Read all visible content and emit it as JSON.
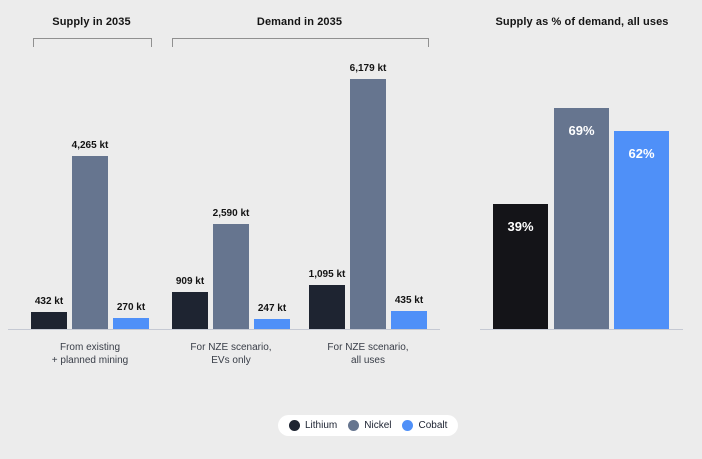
{
  "colors": {
    "background": "#ececec",
    "lithium": "#1e2431",
    "lithium_solo": "#141418",
    "nickel": "#66758f",
    "cobalt": "#4f90f8",
    "axis": "#c5c9d3",
    "bracket": "#909090",
    "value_label_text": "#141414",
    "pct_label_text": "#ffffff",
    "legend_bg": "#ffffff"
  },
  "sections": {
    "supply_header": "Supply in 2035",
    "demand_header": "Demand in 2035",
    "ratio_header": "Supply as % of demand, all uses"
  },
  "legend": {
    "items": [
      {
        "label": "Lithium",
        "color": "#1e2431"
      },
      {
        "label": "Nickel",
        "color": "#66758f"
      },
      {
        "label": "Cobalt",
        "color": "#4f90f8"
      }
    ]
  },
  "chart_data": [
    {
      "type": "bar",
      "title": "Supply and demand in 2035",
      "unit": "kt",
      "ylim": [
        0,
        6179
      ],
      "grid": false,
      "series": [
        "Lithium",
        "Nickel",
        "Cobalt"
      ],
      "categories": [
        [
          "From existing",
          "+ planned mining"
        ],
        [
          "For NZE scenario,",
          "EVs only"
        ],
        [
          "For NZE scenario,",
          "all uses"
        ]
      ],
      "category_sections": [
        "Supply in 2035",
        "Demand in 2035",
        "Demand in 2035"
      ],
      "values": [
        [
          432,
          4265,
          270
        ],
        [
          909,
          2590,
          247
        ],
        [
          1095,
          6179,
          435
        ]
      ],
      "value_label_suffix": " kt"
    },
    {
      "type": "bar",
      "title": "Supply as % of demand, all uses",
      "unit": "%",
      "ylim": [
        0,
        78
      ],
      "grid": false,
      "categories": [
        "Lithium",
        "Nickel",
        "Cobalt"
      ],
      "values": [
        39,
        69,
        62
      ],
      "value_label_suffix": "%"
    }
  ]
}
